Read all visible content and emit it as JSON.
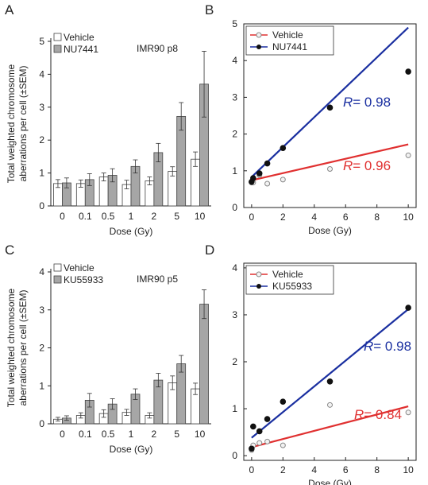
{
  "chart_data": [
    {
      "panel_label": "A",
      "type": "bar",
      "annotation": "IMR90 p8",
      "xlabel": "Dose (Gy)",
      "ylabel": [
        "Total weighted chromosome",
        "aberrations per cell (±SEM)"
      ],
      "ylim": [
        0,
        5
      ],
      "yticks": [
        "0",
        "1",
        "2",
        "3",
        "4",
        "5"
      ],
      "categories": [
        "0",
        "0.1",
        "0.5",
        "1",
        "2",
        "5",
        "10"
      ],
      "legend_position": "top-left",
      "series": [
        {
          "name": "Vehicle",
          "color": "#ffffff",
          "values": [
            0.68,
            0.68,
            0.88,
            0.65,
            0.76,
            1.05,
            1.42
          ],
          "errors": [
            0.12,
            0.11,
            0.12,
            0.13,
            0.12,
            0.14,
            0.22
          ]
        },
        {
          "name": "NU7441",
          "color": "#a6a6a6",
          "values": [
            0.7,
            0.8,
            0.93,
            1.2,
            1.62,
            2.72,
            3.7
          ],
          "errors": [
            0.15,
            0.18,
            0.2,
            0.2,
            0.28,
            0.42,
            1.0
          ]
        }
      ]
    },
    {
      "panel_label": "B",
      "type": "scatter",
      "xlabel": "Dose (Gy)",
      "ylim": [
        0,
        5
      ],
      "xlim": [
        -0.5,
        10.5
      ],
      "xticks": [
        "0",
        "2",
        "4",
        "6",
        "8",
        "10"
      ],
      "yticks": [
        "0",
        "1",
        "2",
        "3",
        "4",
        "5"
      ],
      "legend_position": "top-left",
      "series": [
        {
          "name": "Vehicle",
          "color": "#e03030",
          "marker": "open",
          "x": [
            0,
            0.1,
            0.5,
            1,
            2,
            5,
            10
          ],
          "y": [
            0.68,
            0.68,
            0.88,
            0.65,
            0.76,
            1.05,
            1.42
          ],
          "fit": [
            0.74,
            1.72
          ],
          "r_label": "R",
          "r_value": "= 0.96"
        },
        {
          "name": "NU7441",
          "color": "#1a2fa0",
          "marker": "filled",
          "x": [
            0,
            0.1,
            0.5,
            1,
            2,
            5,
            10
          ],
          "y": [
            0.7,
            0.8,
            0.93,
            1.2,
            1.62,
            2.72,
            3.7
          ],
          "fit": [
            0.83,
            4.9
          ],
          "r_label": "R",
          "r_value": "= 0.98"
        }
      ]
    },
    {
      "panel_label": "C",
      "type": "bar",
      "annotation": "IMR90 p5",
      "xlabel": "Dose (Gy)",
      "ylabel": [
        "Total weighted chromosome",
        "aberrations per cell (±SEM)"
      ],
      "ylim": [
        0,
        4
      ],
      "yticks": [
        "0",
        "1",
        "2",
        "3",
        "4"
      ],
      "categories": [
        "0",
        "0.1",
        "0.5",
        "1",
        "2",
        "5",
        "10"
      ],
      "legend_position": "top-left",
      "series": [
        {
          "name": "Vehicle",
          "color": "#ffffff",
          "values": [
            0.12,
            0.22,
            0.27,
            0.3,
            0.22,
            1.08,
            0.92
          ],
          "errors": [
            0.05,
            0.07,
            0.1,
            0.08,
            0.07,
            0.18,
            0.15
          ]
        },
        {
          "name": "KU55933",
          "color": "#a6a6a6",
          "values": [
            0.15,
            0.62,
            0.52,
            0.78,
            1.15,
            1.58,
            3.15
          ],
          "errors": [
            0.06,
            0.18,
            0.14,
            0.14,
            0.18,
            0.22,
            0.38
          ]
        }
      ]
    },
    {
      "panel_label": "D",
      "type": "scatter",
      "xlabel": "Dose (Gy)",
      "ylim": [
        -0.1,
        4.1
      ],
      "xlim": [
        -0.5,
        10.5
      ],
      "xticks": [
        "0",
        "2",
        "4",
        "6",
        "8",
        "10"
      ],
      "yticks": [
        "0",
        "1",
        "2",
        "3",
        "4"
      ],
      "legend_position": "top-left",
      "series": [
        {
          "name": "Vehicle",
          "color": "#e03030",
          "marker": "open",
          "x": [
            0,
            0.1,
            0.5,
            1,
            2,
            5,
            10
          ],
          "y": [
            0.12,
            0.22,
            0.27,
            0.3,
            0.22,
            1.08,
            0.92
          ],
          "fit": [
            0.18,
            1.05
          ],
          "r_label": "R",
          "r_value": "= 0.84"
        },
        {
          "name": "KU55933",
          "color": "#1a2fa0",
          "marker": "filled",
          "x": [
            0,
            0.1,
            0.5,
            1,
            2,
            5,
            10
          ],
          "y": [
            0.15,
            0.62,
            0.52,
            0.78,
            1.15,
            1.58,
            3.15
          ],
          "fit": [
            0.38,
            3.12
          ],
          "r_label": "R",
          "r_value": "= 0.98"
        }
      ]
    }
  ]
}
